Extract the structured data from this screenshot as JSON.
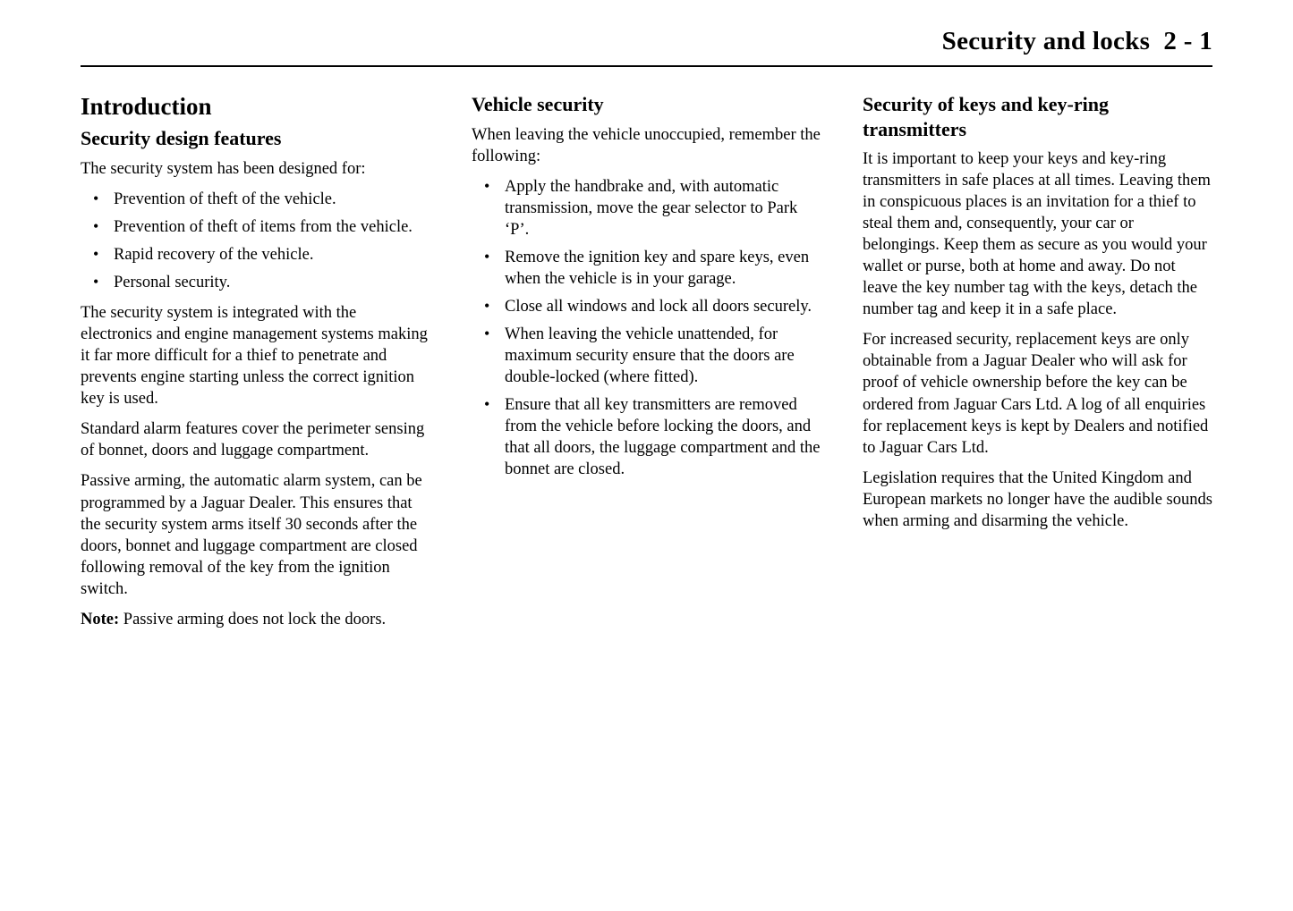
{
  "header": {
    "title": "Security and locks  2 - 1"
  },
  "col1": {
    "section_title": "Introduction",
    "sub_title": "Security design features",
    "intro": "The security system has been designed for:",
    "bullets": [
      "Prevention of theft of the vehicle.",
      "Prevention of theft of items from the vehicle.",
      "Rapid recovery of the vehicle.",
      "Personal security."
    ],
    "p2": "The security system is integrated with the electronics and engine management systems making it far more difficult for a thief to penetrate and prevents engine starting unless the correct ignition key is used.",
    "p3": "Standard alarm features cover the perimeter sensing of bonnet, doors and luggage compartment.",
    "p4": "Passive arming, the automatic alarm system, can be programmed by a Jaguar Dealer. This ensures that the security system arms itself 30 seconds after the doors, bonnet and luggage compartment are closed following removal of the key from the ignition switch.",
    "note_label": "Note:",
    "note_text": "  Passive arming does not lock the doors."
  },
  "col2": {
    "sub_title": "Vehicle security",
    "intro": "When leaving the vehicle unoccupied, remember the following:",
    "bullets": [
      "Apply the handbrake and, with automatic transmission, move the gear selector to Park ‘P’.",
      "Remove the ignition key and spare keys, even when the vehicle is in your garage.",
      "Close all windows and lock all doors securely.",
      "When leaving the vehicle unattended, for maximum security ensure that the doors are double-locked (where fitted).",
      "Ensure that all key transmitters are removed from the vehicle before locking the doors, and that all doors, the luggage compartment and the bonnet are closed."
    ]
  },
  "col3": {
    "sub_title": "Security of keys and key-ring transmitters",
    "p1": "It is important to keep your keys and key-ring transmitters in safe places at all times. Leaving them in conspicuous places is an invitation for a thief to steal them and, consequently, your car or belongings. Keep them as secure as you would your wallet or purse, both at home and away. Do not leave the key number tag with the keys, detach the number tag and keep it in a safe place.",
    "p2": "For increased security, replacement keys are only obtainable from a Jaguar Dealer who will ask for proof of vehicle ownership before the key can be ordered from Jaguar Cars Ltd. A log of all enquiries for replacement keys is kept by Dealers and notified to Jaguar Cars Ltd.",
    "p3": "Legislation requires that the United Kingdom and European markets no longer have the audible sounds when arming and disarming the vehicle."
  }
}
